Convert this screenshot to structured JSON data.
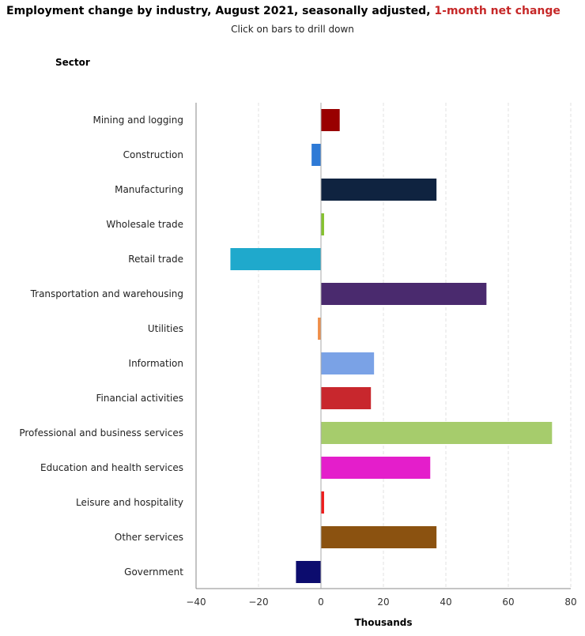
{
  "header": {
    "title_main": "Employment change by industry, August 2021, seasonally adjusted,",
    "title_highlight": "1-month net change",
    "subtitle": "Click on bars to drill down"
  },
  "chart_data": {
    "type": "bar",
    "orientation": "horizontal",
    "ylabel": "Sector",
    "xlabel": "Thousands",
    "xlim": [
      -40,
      80
    ],
    "xticks": [
      -40,
      -20,
      0,
      20,
      40,
      60,
      80
    ],
    "xtick_labels": [
      "−40",
      "−20",
      "0",
      "20",
      "40",
      "60",
      "80"
    ],
    "grid": true,
    "categories": [
      "Mining and logging",
      "Construction",
      "Manufacturing",
      "Wholesale trade",
      "Retail trade",
      "Transportation and warehousing",
      "Utilities",
      "Information",
      "Financial activities",
      "Professional and business services",
      "Education and health services",
      "Leisure and hospitality",
      "Other services",
      "Government"
    ],
    "values": [
      6,
      -3,
      37,
      1,
      -29,
      53,
      -1,
      17,
      16,
      74,
      35,
      1,
      37,
      -8
    ],
    "colors": [
      "#990000",
      "#2e7ad6",
      "#0f2340",
      "#85c22e",
      "#1fa9cc",
      "#4a2a6e",
      "#ef8e49",
      "#7aa2e6",
      "#c8272d",
      "#a6cc6c",
      "#e41ecb",
      "#ee1c1c",
      "#8b5210",
      "#0c0c6e"
    ]
  }
}
